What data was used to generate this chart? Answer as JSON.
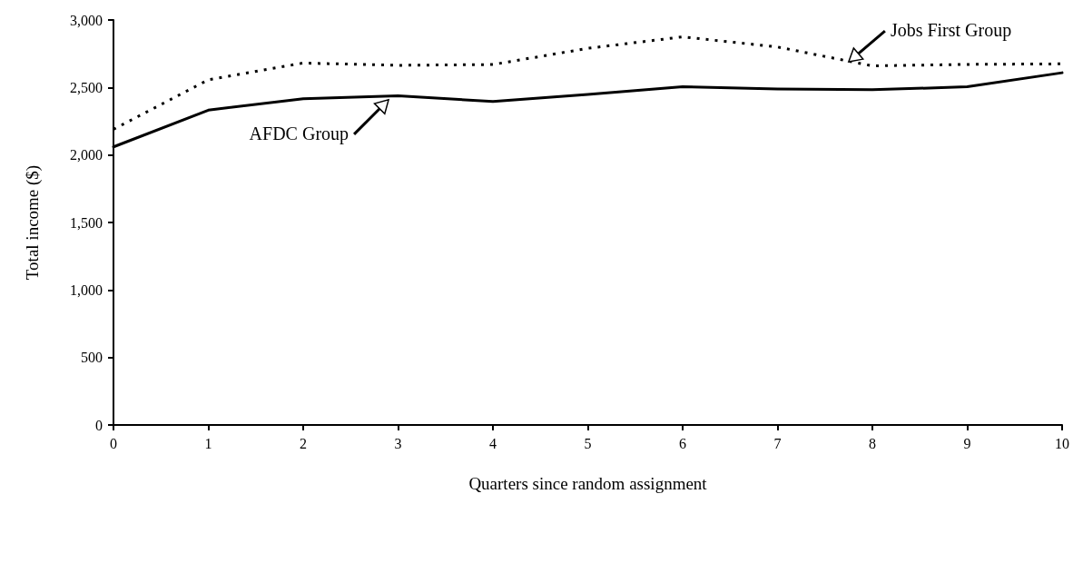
{
  "chart_data": {
    "type": "line",
    "xlabel": "Quarters since random assignment",
    "ylabel": "Total income ($)",
    "x": [
      0,
      1,
      2,
      3,
      4,
      5,
      6,
      7,
      8,
      9,
      10
    ],
    "series": [
      {
        "color": "#000000",
        "line_style": "dotted",
        "values": [
          2190,
          2557,
          2681,
          2664,
          2670,
          2790,
          2875,
          2800,
          2660,
          2671,
          2675
        ]
      },
      {
        "color": "#000000",
        "line_style": "solid",
        "values": [
          2060,
          2332,
          2417,
          2439,
          2396,
          2449,
          2505,
          2489,
          2483,
          2505,
          2609
        ]
      }
    ],
    "xlim": [
      0,
      10
    ],
    "xticks": [
      0,
      1,
      2,
      3,
      4,
      5,
      6,
      7,
      8,
      9,
      10
    ],
    "ylim": [
      0,
      3000
    ],
    "yticks": [
      0,
      {
        "value": 500,
        "label": "500"
      },
      {
        "value": 1000,
        "label": "1,000"
      },
      {
        "value": 1500,
        "label": "1,500"
      },
      {
        "value": 2000,
        "label": "2,000"
      },
      {
        "value": 2500,
        "label": "2,500"
      },
      {
        "value": 3000,
        "label": "3,000"
      }
    ],
    "annotations": [
      {
        "text": "Jobs First Group",
        "x": 7.75,
        "y": 2690
      },
      {
        "text": "AFDC Group",
        "x": 2.9,
        "y": 2436
      }
    ],
    "grid": false,
    "marker": "none"
  }
}
